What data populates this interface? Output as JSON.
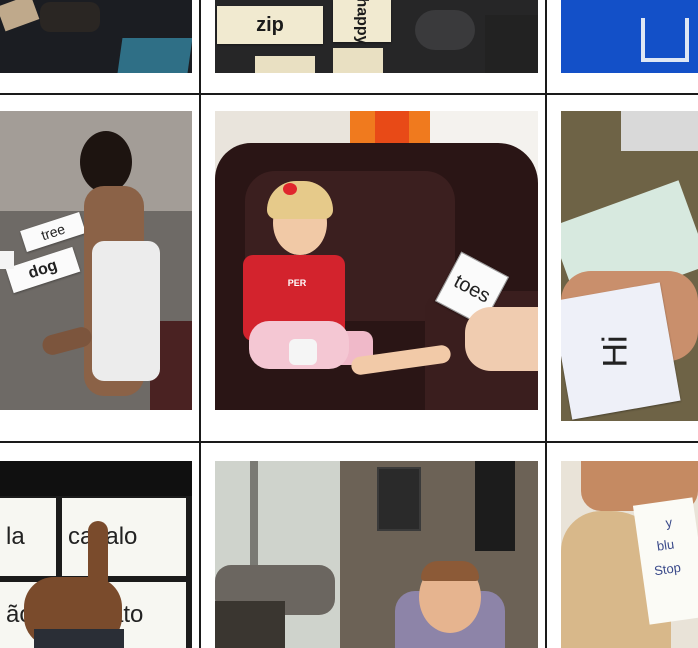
{
  "cards": {
    "zip": "zip",
    "happy": "happy",
    "tree": "tree",
    "dog": "dog",
    "toes": "toes",
    "hi": "Hi",
    "shirt_text": "PER",
    "note_1": "y",
    "note_2": "blu",
    "note_3": "Stop"
  },
  "tablet_tiles": {
    "t1": "la",
    "t2": "cavalo",
    "t3": "ão",
    "t4": "ato"
  }
}
